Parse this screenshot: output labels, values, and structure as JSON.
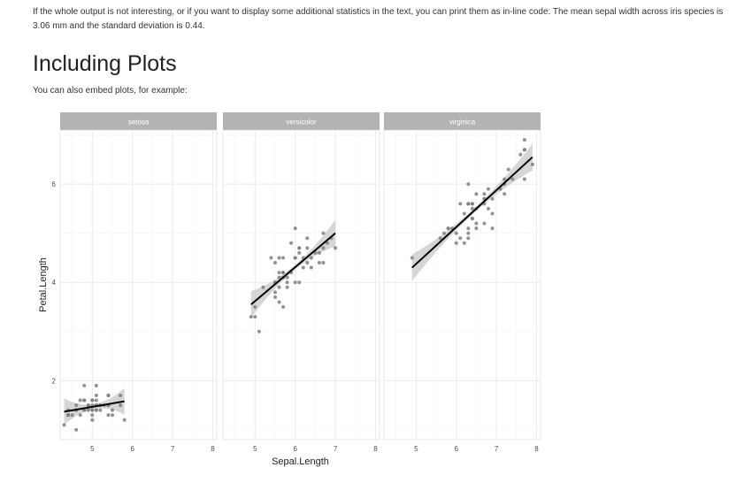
{
  "intro": {
    "paragraph": "If the whole output is not interesting, or if you want to display some additional statistics in the text, you can print them as in-line code: The mean sepal width across iris species is 3.06 mm and the standard deviation is 0.44."
  },
  "section": {
    "title": "Including Plots",
    "text": "You can also embed plots, for example:"
  },
  "colors": {
    "strip": "#b3b3b3",
    "grid": "#ebebeb",
    "point": "#7f7f7f",
    "ribbon": "#cccccc",
    "fit_line": "#000000"
  },
  "chart_data": {
    "type": "scatter",
    "facet_by": "Species",
    "xlabel": "Sepal.Length",
    "ylabel": "Petal.Length",
    "xlim": [
      4.2,
      8.1
    ],
    "ylim": [
      0.8,
      7.1
    ],
    "x_ticks": [
      "5",
      "6",
      "7",
      "8"
    ],
    "y_ticks": [
      "2",
      "4",
      "6"
    ],
    "grid": true,
    "smooth": "linear fit with confidence band",
    "panels": [
      {
        "name": "setosa",
        "fit": {
          "x": [
            4.3,
            5.8
          ],
          "y": [
            1.37,
            1.58
          ]
        },
        "points": [
          [
            5.1,
            1.4
          ],
          [
            4.9,
            1.4
          ],
          [
            4.7,
            1.3
          ],
          [
            4.6,
            1.5
          ],
          [
            5.0,
            1.4
          ],
          [
            5.4,
            1.7
          ],
          [
            4.6,
            1.4
          ],
          [
            5.0,
            1.5
          ],
          [
            4.4,
            1.4
          ],
          [
            4.9,
            1.5
          ],
          [
            5.4,
            1.5
          ],
          [
            4.8,
            1.6
          ],
          [
            4.8,
            1.4
          ],
          [
            4.3,
            1.1
          ],
          [
            5.8,
            1.2
          ],
          [
            5.7,
            1.5
          ],
          [
            5.4,
            1.3
          ],
          [
            5.1,
            1.4
          ],
          [
            5.7,
            1.7
          ],
          [
            5.1,
            1.5
          ],
          [
            5.4,
            1.7
          ],
          [
            5.1,
            1.5
          ],
          [
            4.6,
            1.0
          ],
          [
            5.1,
            1.7
          ],
          [
            4.8,
            1.9
          ],
          [
            5.0,
            1.6
          ],
          [
            5.0,
            1.6
          ],
          [
            5.2,
            1.5
          ],
          [
            5.2,
            1.4
          ],
          [
            4.7,
            1.6
          ],
          [
            4.8,
            1.6
          ],
          [
            5.4,
            1.5
          ],
          [
            5.2,
            1.5
          ],
          [
            5.5,
            1.4
          ],
          [
            4.9,
            1.5
          ],
          [
            5.0,
            1.2
          ],
          [
            5.5,
            1.3
          ],
          [
            4.4,
            1.3
          ],
          [
            5.1,
            1.5
          ],
          [
            5.0,
            1.3
          ],
          [
            4.5,
            1.3
          ],
          [
            4.4,
            1.3
          ],
          [
            5.0,
            1.6
          ],
          [
            5.1,
            1.9
          ],
          [
            4.8,
            1.4
          ],
          [
            5.1,
            1.6
          ],
          [
            4.6,
            1.4
          ],
          [
            5.3,
            1.5
          ],
          [
            5.0,
            1.4
          ]
        ]
      },
      {
        "name": "versicolor",
        "fit": {
          "x": [
            4.9,
            7.0
          ],
          "y": [
            3.55,
            5.0
          ]
        },
        "points": [
          [
            7.0,
            4.7
          ],
          [
            6.4,
            4.5
          ],
          [
            6.9,
            4.9
          ],
          [
            5.5,
            4.0
          ],
          [
            6.5,
            4.6
          ],
          [
            5.7,
            4.5
          ],
          [
            6.3,
            4.7
          ],
          [
            4.9,
            3.3
          ],
          [
            6.6,
            4.6
          ],
          [
            5.2,
            3.9
          ],
          [
            5.0,
            3.5
          ],
          [
            5.9,
            4.2
          ],
          [
            6.0,
            4.0
          ],
          [
            6.1,
            4.7
          ],
          [
            5.6,
            3.6
          ],
          [
            6.7,
            4.4
          ],
          [
            5.6,
            4.5
          ],
          [
            5.8,
            4.1
          ],
          [
            6.2,
            4.5
          ],
          [
            5.6,
            3.9
          ],
          [
            5.9,
            4.8
          ],
          [
            6.1,
            4.0
          ],
          [
            6.3,
            4.9
          ],
          [
            6.1,
            4.7
          ],
          [
            6.4,
            4.3
          ],
          [
            6.6,
            4.4
          ],
          [
            6.8,
            4.8
          ],
          [
            6.7,
            5.0
          ],
          [
            6.0,
            4.5
          ],
          [
            5.7,
            3.5
          ],
          [
            5.5,
            3.8
          ],
          [
            5.5,
            3.7
          ],
          [
            5.8,
            3.9
          ],
          [
            6.0,
            5.1
          ],
          [
            5.4,
            4.5
          ],
          [
            6.0,
            4.5
          ],
          [
            6.7,
            4.7
          ],
          [
            6.3,
            4.4
          ],
          [
            5.6,
            4.1
          ],
          [
            5.5,
            4.0
          ],
          [
            5.5,
            4.4
          ],
          [
            6.1,
            4.6
          ],
          [
            5.8,
            4.0
          ],
          [
            5.0,
            3.3
          ],
          [
            5.6,
            4.2
          ],
          [
            5.7,
            4.2
          ],
          [
            5.7,
            4.2
          ],
          [
            6.2,
            4.3
          ],
          [
            5.1,
            3.0
          ],
          [
            5.7,
            4.1
          ]
        ]
      },
      {
        "name": "virginica",
        "fit": {
          "x": [
            4.9,
            7.9
          ],
          "y": [
            4.3,
            6.55
          ]
        },
        "points": [
          [
            6.3,
            6.0
          ],
          [
            5.8,
            5.1
          ],
          [
            7.1,
            5.9
          ],
          [
            6.3,
            5.6
          ],
          [
            6.5,
            5.8
          ],
          [
            7.6,
            6.6
          ],
          [
            4.9,
            4.5
          ],
          [
            7.3,
            6.3
          ],
          [
            6.7,
            5.8
          ],
          [
            7.2,
            6.1
          ],
          [
            6.5,
            5.1
          ],
          [
            6.4,
            5.3
          ],
          [
            6.8,
            5.5
          ],
          [
            5.7,
            5.0
          ],
          [
            5.8,
            5.1
          ],
          [
            6.4,
            5.3
          ],
          [
            6.5,
            5.5
          ],
          [
            7.7,
            6.7
          ],
          [
            7.7,
            6.9
          ],
          [
            6.0,
            5.0
          ],
          [
            6.9,
            5.7
          ],
          [
            5.6,
            4.9
          ],
          [
            7.7,
            6.7
          ],
          [
            6.3,
            4.9
          ],
          [
            6.7,
            5.7
          ],
          [
            7.2,
            6.0
          ],
          [
            6.2,
            4.8
          ],
          [
            6.1,
            4.9
          ],
          [
            6.4,
            5.6
          ],
          [
            7.2,
            5.8
          ],
          [
            7.4,
            6.1
          ],
          [
            7.9,
            6.4
          ],
          [
            6.4,
            5.6
          ],
          [
            6.3,
            5.1
          ],
          [
            6.1,
            5.6
          ],
          [
            7.7,
            6.1
          ],
          [
            6.3,
            5.6
          ],
          [
            6.4,
            5.5
          ],
          [
            6.0,
            4.8
          ],
          [
            6.9,
            5.4
          ],
          [
            6.7,
            5.6
          ],
          [
            6.9,
            5.1
          ],
          [
            6.8,
            5.9
          ],
          [
            6.7,
            5.7
          ],
          [
            6.7,
            5.2
          ],
          [
            6.3,
            5.0
          ],
          [
            6.5,
            5.2
          ],
          [
            6.2,
            5.4
          ],
          [
            5.9,
            5.1
          ]
        ]
      }
    ]
  }
}
